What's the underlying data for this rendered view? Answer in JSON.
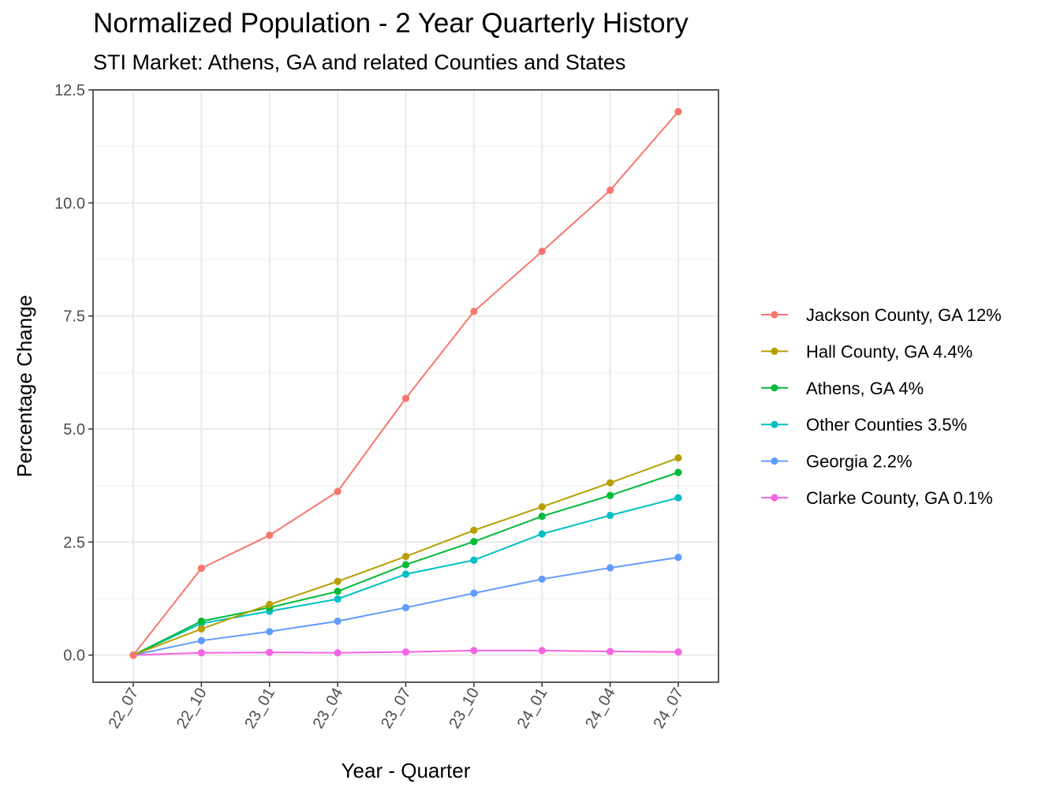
{
  "title": "Normalized Population - 2 Year Quarterly History",
  "subtitle": "STI Market: Athens, GA and related Counties and States",
  "chart_data": {
    "type": "line",
    "title": "Normalized Population - 2 Year Quarterly History",
    "subtitle": "STI Market: Athens, GA and related Counties and States",
    "xlabel": "Year - Quarter",
    "ylabel": "Percentage Change",
    "categories": [
      "22_07",
      "22_10",
      "23_01",
      "23_04",
      "23_07",
      "23_10",
      "24_01",
      "24_04",
      "24_07"
    ],
    "ylim": [
      -0.6,
      12.5
    ],
    "yticks": [
      0.0,
      2.5,
      5.0,
      7.5,
      10.0,
      12.5
    ],
    "ytick_labels": [
      "0.0",
      "2.5",
      "5.0",
      "7.5",
      "10.0",
      "12.5"
    ],
    "grid": true,
    "legend_position": "right",
    "series": [
      {
        "name": "Jackson County, GA 12%",
        "color": "#F8766D",
        "values": [
          0.0,
          1.92,
          2.65,
          3.62,
          5.68,
          7.6,
          8.93,
          10.28,
          12.02
        ]
      },
      {
        "name": "Hall County, GA 4.4%",
        "color": "#B79F00",
        "values": [
          0.0,
          0.58,
          1.12,
          1.63,
          2.18,
          2.76,
          3.28,
          3.81,
          4.36
        ]
      },
      {
        "name": "Athens, GA 4%",
        "color": "#00BA38",
        "values": [
          0.0,
          0.75,
          1.05,
          1.41,
          2.0,
          2.51,
          3.07,
          3.53,
          4.04
        ]
      },
      {
        "name": "Other Counties 3.5%",
        "color": "#00BFC4",
        "values": [
          0.0,
          0.7,
          0.97,
          1.24,
          1.79,
          2.1,
          2.68,
          3.09,
          3.48
        ]
      },
      {
        "name": "Georgia 2.2%",
        "color": "#619CFF",
        "values": [
          0.0,
          0.32,
          0.52,
          0.75,
          1.05,
          1.37,
          1.68,
          1.93,
          2.16
        ]
      },
      {
        "name": "Clarke County, GA 0.1%",
        "color": "#F564E3",
        "values": [
          0.0,
          0.05,
          0.06,
          0.05,
          0.07,
          0.1,
          0.1,
          0.08,
          0.07
        ]
      }
    ]
  }
}
